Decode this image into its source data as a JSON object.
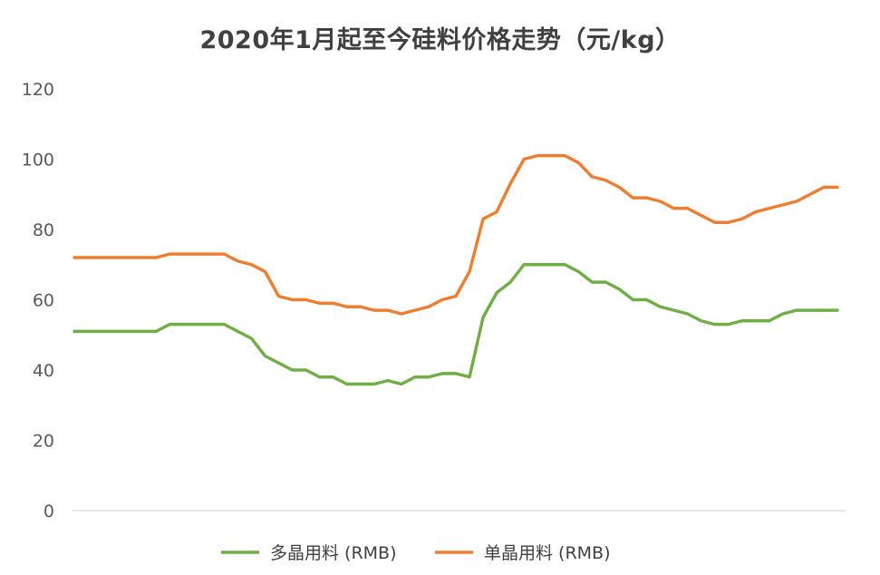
{
  "chart_data": {
    "type": "line",
    "title": "2020年1月起至今硅料价格走势（元/kg）",
    "ylim": [
      0,
      120
    ],
    "yticks": [
      "0",
      "20",
      "40",
      "60",
      "80",
      "100",
      "120"
    ],
    "grid": false,
    "legend_position": "bottom",
    "series": [
      {
        "name": "多晶用料 (RMB)",
        "color": "#70AD47",
        "values": [
          51,
          51,
          51,
          51,
          51,
          51,
          51,
          53,
          53,
          53,
          53,
          53,
          51,
          49,
          44,
          42,
          40,
          40,
          38,
          38,
          36,
          36,
          36,
          37,
          36,
          38,
          38,
          39,
          39,
          38,
          55,
          62,
          65,
          70,
          70,
          70,
          70,
          68,
          65,
          65,
          63,
          60,
          60,
          58,
          57,
          56,
          54,
          53,
          53,
          54,
          54,
          54,
          56,
          57,
          57,
          57,
          57
        ]
      },
      {
        "name": "单晶用料 (RMB)",
        "color": "#ED7D31",
        "values": [
          72,
          72,
          72,
          72,
          72,
          72,
          72,
          73,
          73,
          73,
          73,
          73,
          71,
          70,
          68,
          61,
          60,
          60,
          59,
          59,
          58,
          58,
          57,
          57,
          56,
          57,
          58,
          60,
          61,
          68,
          83,
          85,
          93,
          100,
          101,
          101,
          101,
          99,
          95,
          94,
          92,
          89,
          89,
          88,
          86,
          86,
          84,
          82,
          82,
          83,
          85,
          86,
          87,
          88,
          90,
          92,
          92
        ]
      }
    ]
  }
}
